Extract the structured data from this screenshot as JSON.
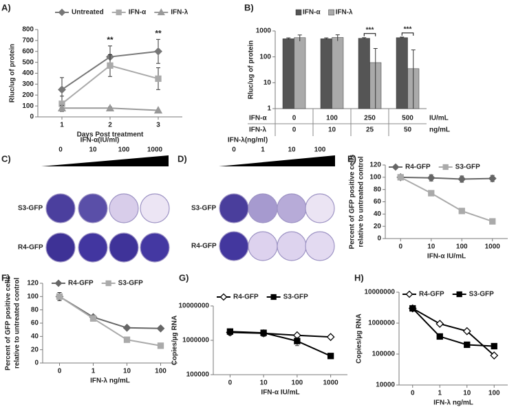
{
  "chart_data": [
    {
      "type": "line",
      "panel_label": "A)",
      "ylabel": [
        "Rluc/ug of protein"
      ],
      "xlabel": "Days  Post treatment",
      "categories": [
        "1",
        "2",
        "3"
      ],
      "ylim": [
        0,
        800
      ],
      "yticks": [
        0,
        100,
        200,
        300,
        400,
        500,
        600,
        700,
        800
      ],
      "series": [
        {
          "name": "Untreated",
          "color": "#777777",
          "marker": "diamond",
          "marker_fill": "#777777",
          "values": [
            250,
            550,
            600
          ],
          "errors": [
            110,
            100,
            110
          ]
        },
        {
          "name": "IFN-α",
          "color": "#aaaaaa",
          "marker": "square",
          "marker_fill": "#aaaaaa",
          "values": [
            120,
            470,
            350
          ],
          "errors": [
            70,
            100,
            100
          ]
        },
        {
          "name": "IFN-λ",
          "color": "#999999",
          "marker": "triangle",
          "marker_fill": "#999999",
          "values": [
            80,
            80,
            60
          ],
          "errors": [
            25,
            10,
            5
          ]
        }
      ],
      "annotations": [
        {
          "text": "**",
          "category": "2"
        },
        {
          "text": "**",
          "category": "3"
        }
      ]
    },
    {
      "type": "bar",
      "panel_label": "B)",
      "ylabel": [
        "Rluc/ug of protein"
      ],
      "log_y": true,
      "categories": [
        "0",
        "100",
        "250",
        "500"
      ],
      "category_row_label": "IFN-α",
      "category_unit": "IU/mL",
      "second_row": {
        "label": "IFN-λ",
        "cells": [
          "0",
          "10",
          "25",
          "50"
        ],
        "unit": "ng/mL"
      },
      "ylim": [
        1,
        1000
      ],
      "yticks": [
        1,
        10,
        100,
        1000
      ],
      "series": [
        {
          "name": "IFN-α",
          "color": "#555555",
          "values": [
            500,
            500,
            520,
            550
          ],
          "errors": [
            40,
            40,
            30,
            30
          ]
        },
        {
          "name": "IFN-λ",
          "color": "#aaaaaa",
          "values": [
            550,
            560,
            60,
            35
          ],
          "errors": [
            150,
            150,
            150,
            150
          ]
        }
      ],
      "annotations": [
        {
          "text": "***",
          "category": "250"
        },
        {
          "text": "***",
          "category": "500"
        }
      ]
    },
    {
      "type": "line",
      "panel_label": "E)",
      "ylabel": [
        "Percent of GFP positive cells",
        "relative to untreated control"
      ],
      "xlabel": "IFN-α IU/mL",
      "categories": [
        "0",
        "10",
        "100",
        "1000"
      ],
      "ylim": [
        0,
        120
      ],
      "yticks": [
        0,
        20,
        40,
        60,
        80,
        100,
        120
      ],
      "series": [
        {
          "name": "R4-GFP",
          "color": "#666666",
          "marker": "diamond",
          "marker_fill": "#666666",
          "values": [
            100,
            99,
            97,
            98
          ],
          "errors": [
            4,
            5,
            5,
            5
          ]
        },
        {
          "name": "S3-GFP",
          "color": "#aaaaaa",
          "marker": "square",
          "marker_fill": "#aaaaaa",
          "values": [
            100,
            74,
            45,
            28
          ],
          "errors": [
            4,
            3,
            2,
            2
          ]
        }
      ]
    },
    {
      "type": "line",
      "panel_label": "F)",
      "ylabel": [
        "Percent of GFP positive cells",
        "relative to untreated control"
      ],
      "xlabel": "IFN-λ ng/mL",
      "categories": [
        "0",
        "1",
        "10",
        "100"
      ],
      "ylim": [
        0,
        120
      ],
      "yticks": [
        0,
        20,
        40,
        60,
        80,
        100,
        120
      ],
      "series": [
        {
          "name": "R4-GFP",
          "color": "#666666",
          "marker": "diamond",
          "marker_fill": "#666666",
          "values": [
            100,
            69,
            53,
            52
          ],
          "errors": [
            6,
            3,
            2,
            2
          ]
        },
        {
          "name": "S3-GFP",
          "color": "#aaaaaa",
          "marker": "square",
          "marker_fill": "#aaaaaa",
          "values": [
            100,
            67,
            35,
            26
          ],
          "errors": [
            6,
            3,
            1,
            1
          ]
        }
      ]
    },
    {
      "type": "line",
      "panel_label": "G)",
      "ylabel": [
        "Copies/µg RNA"
      ],
      "xlabel": "IFN-α IU/mL",
      "log_y": true,
      "categories": [
        "0",
        "10",
        "100",
        "1000"
      ],
      "ylim": [
        100000,
        10000000
      ],
      "yticks": [
        100000,
        1000000,
        10000000
      ],
      "series": [
        {
          "name": "R4-GFP",
          "color": "#000000",
          "marker": "diamond",
          "marker_fill": "#ffffff",
          "values": [
            1700000,
            1600000,
            1400000,
            1250000
          ],
          "errors": [
            300000,
            200000,
            150000,
            100000
          ]
        },
        {
          "name": "S3-GFP",
          "color": "#000000",
          "marker": "square",
          "marker_fill": "#000000",
          "values": [
            1800000,
            1650000,
            950000,
            350000
          ],
          "errors": [
            300000,
            350000,
            250000,
            50000
          ]
        }
      ]
    },
    {
      "type": "line",
      "panel_label": "H)",
      "ylabel": [
        "Copies/µg RNA"
      ],
      "xlabel": "IFN-λ ng/mL",
      "log_y": true,
      "categories": [
        "0",
        "1",
        "10",
        "100"
      ],
      "ylim": [
        10000,
        10000000
      ],
      "yticks": [
        10000,
        100000,
        1000000,
        10000000
      ],
      "series": [
        {
          "name": "R4-GFP",
          "color": "#000000",
          "marker": "diamond",
          "marker_fill": "#ffffff",
          "values": [
            3000000,
            950000,
            550000,
            90000
          ]
        },
        {
          "name": "S3-GFP",
          "color": "#000000",
          "marker": "square",
          "marker_fill": "#000000",
          "values": [
            3000000,
            370000,
            200000,
            180000
          ]
        }
      ]
    }
  ],
  "image_panels": [
    {
      "panel_label": "C)",
      "title": "IFN-α(IU/ml)",
      "doses": [
        "0",
        "10",
        "100",
        "1000"
      ],
      "rows": [
        "S3-GFP",
        "R4-GFP"
      ]
    },
    {
      "panel_label": "D)",
      "title": "IFN-λ(ng/ml)",
      "doses": [
        "0",
        "1",
        "10",
        "100"
      ],
      "rows": [
        "S3-GFP",
        "R4-GFP"
      ]
    }
  ]
}
